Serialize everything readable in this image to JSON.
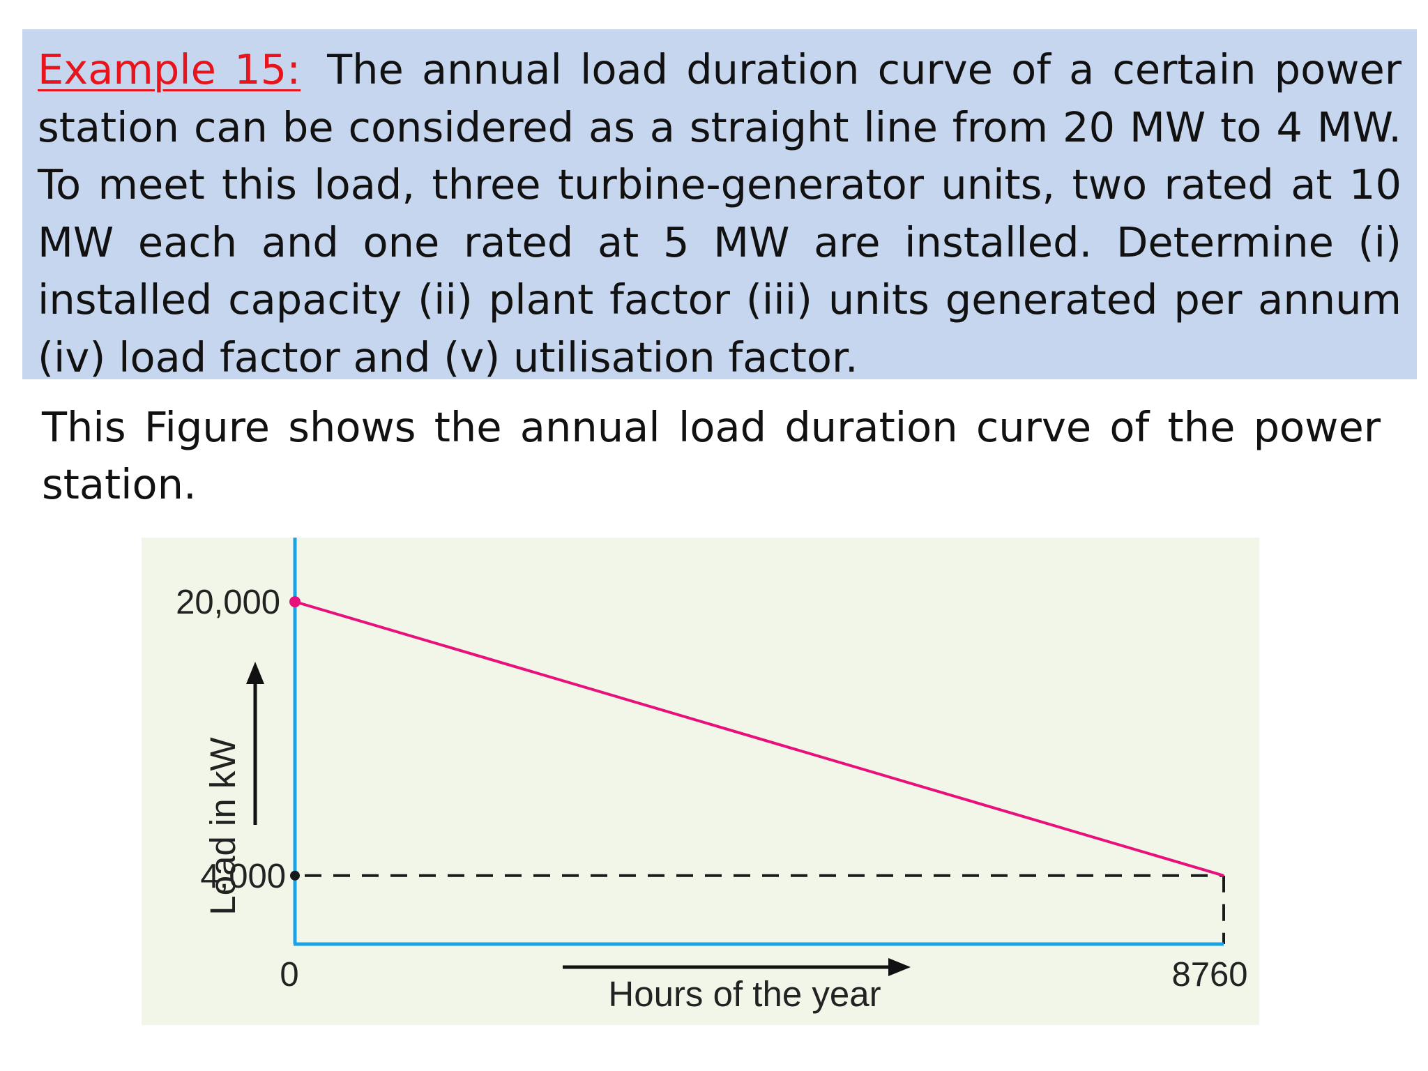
{
  "problem": {
    "example_label": "Example 15:",
    "statement": "The annual load duration curve of a certain power station can be considered as a straight line from 20 MW to 4 MW. To meet this load, three turbine-generator units, two rated at 10 MW each and one rated at 5 MW are installed. Determine (i) installed capacity (ii) plant factor (iii) units generated per annum (iv) load factor and (v) utilisation factor."
  },
  "intro": "This Figure shows the annual load duration curve of the power station.",
  "colors": {
    "box_background": "#c6d6ee",
    "example_label": "#e8141b",
    "chart_background": "#f2f6e8",
    "axis": "#1aa3e6",
    "curve": "#e8107a"
  },
  "chart_data": {
    "type": "line",
    "xlabel": "Hours of the year",
    "ylabel": "Load in kW",
    "x_ticks": [
      "0",
      "8760"
    ],
    "y_ticks": [
      "20,000",
      "4,000"
    ],
    "series": [
      {
        "x": [
          0,
          8760
        ],
        "y": [
          20000,
          4000
        ]
      }
    ],
    "xlim": [
      0,
      8760
    ],
    "ylim": [
      0,
      20000
    ],
    "grid": false,
    "legend": "none",
    "reference_lines": [
      {
        "type": "horizontal-dashed",
        "y": 4000,
        "x_from": 0,
        "x_to": 8760
      },
      {
        "type": "vertical-dashed",
        "x": 8760,
        "y_from": 0,
        "y_to": 4000
      }
    ]
  }
}
